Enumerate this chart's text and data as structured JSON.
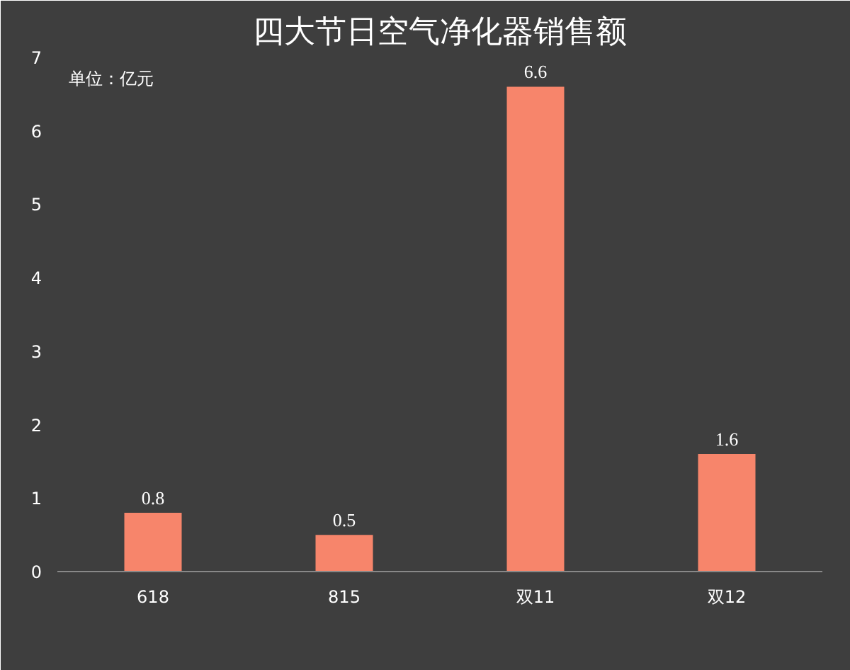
{
  "chart_data": {
    "type": "bar",
    "title": "四大节日空气净化器销售额",
    "categories": [
      "618",
      "815",
      "双11",
      "双12"
    ],
    "values": [
      0.8,
      0.5,
      6.6,
      1.6
    ],
    "color": "#f7856b",
    "ylim": [
      0,
      7
    ],
    "yticks": [
      0,
      1,
      2,
      3,
      4,
      5,
      6,
      7
    ],
    "data_labels": true,
    "grid": false,
    "annotations": [
      "单位：亿元"
    ]
  }
}
